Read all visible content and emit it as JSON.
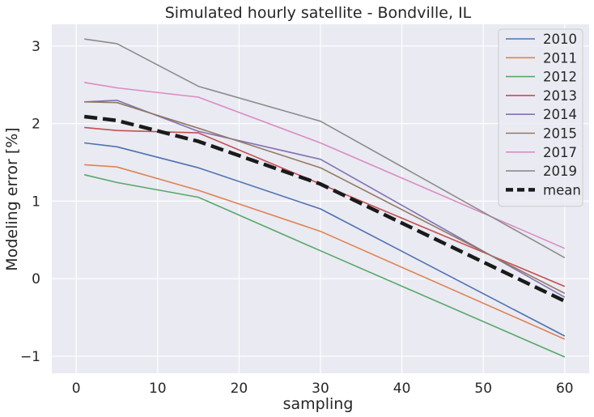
{
  "chart_data": {
    "type": "line",
    "title": "Simulated hourly satellite - Bondville, IL",
    "xlabel": "sampling",
    "ylabel": "Modeling error [%]",
    "xlim": [
      -3,
      63
    ],
    "ylim": [
      -1.22,
      3.28
    ],
    "xticks": [
      0,
      10,
      20,
      30,
      40,
      50,
      60
    ],
    "xtick_labels": [
      "0",
      "10",
      "20",
      "30",
      "40",
      "50",
      "60"
    ],
    "yticks": [
      -1,
      0,
      1,
      2,
      3
    ],
    "ytick_labels": [
      "−1",
      "0",
      "1",
      "2",
      "3"
    ],
    "grid": true,
    "legend_position": "top-right",
    "x": [
      1,
      5,
      15,
      30,
      60
    ],
    "series": [
      {
        "name": "2010",
        "color": "#4c72b0",
        "style": "solid",
        "values": [
          1.75,
          1.7,
          1.43,
          0.9,
          -0.74
        ]
      },
      {
        "name": "2011",
        "color": "#dd8452",
        "style": "solid",
        "values": [
          1.47,
          1.44,
          1.14,
          0.61,
          -0.78
        ]
      },
      {
        "name": "2012",
        "color": "#55a868",
        "style": "solid",
        "values": [
          1.34,
          1.24,
          1.05,
          0.36,
          -1.01
        ]
      },
      {
        "name": "2013",
        "color": "#c44e52",
        "style": "solid",
        "values": [
          1.95,
          1.91,
          1.88,
          1.22,
          -0.1
        ]
      },
      {
        "name": "2014",
        "color": "#8172b3",
        "style": "solid",
        "values": [
          2.28,
          2.3,
          1.9,
          1.54,
          -0.24
        ]
      },
      {
        "name": "2015",
        "color": "#937860",
        "style": "solid",
        "values": [
          2.28,
          2.27,
          1.94,
          1.43,
          -0.19
        ]
      },
      {
        "name": "2017",
        "color": "#da8bc3",
        "style": "solid",
        "values": [
          2.53,
          2.46,
          2.34,
          1.75,
          0.39
        ]
      },
      {
        "name": "2019",
        "color": "#8c8c8c",
        "style": "solid",
        "values": [
          3.09,
          3.03,
          2.48,
          2.03,
          0.27
        ]
      },
      {
        "name": "mean",
        "color": "#1a1a1a",
        "style": "dashed",
        "values": [
          2.09,
          2.04,
          1.77,
          1.22,
          -0.29
        ]
      }
    ]
  }
}
